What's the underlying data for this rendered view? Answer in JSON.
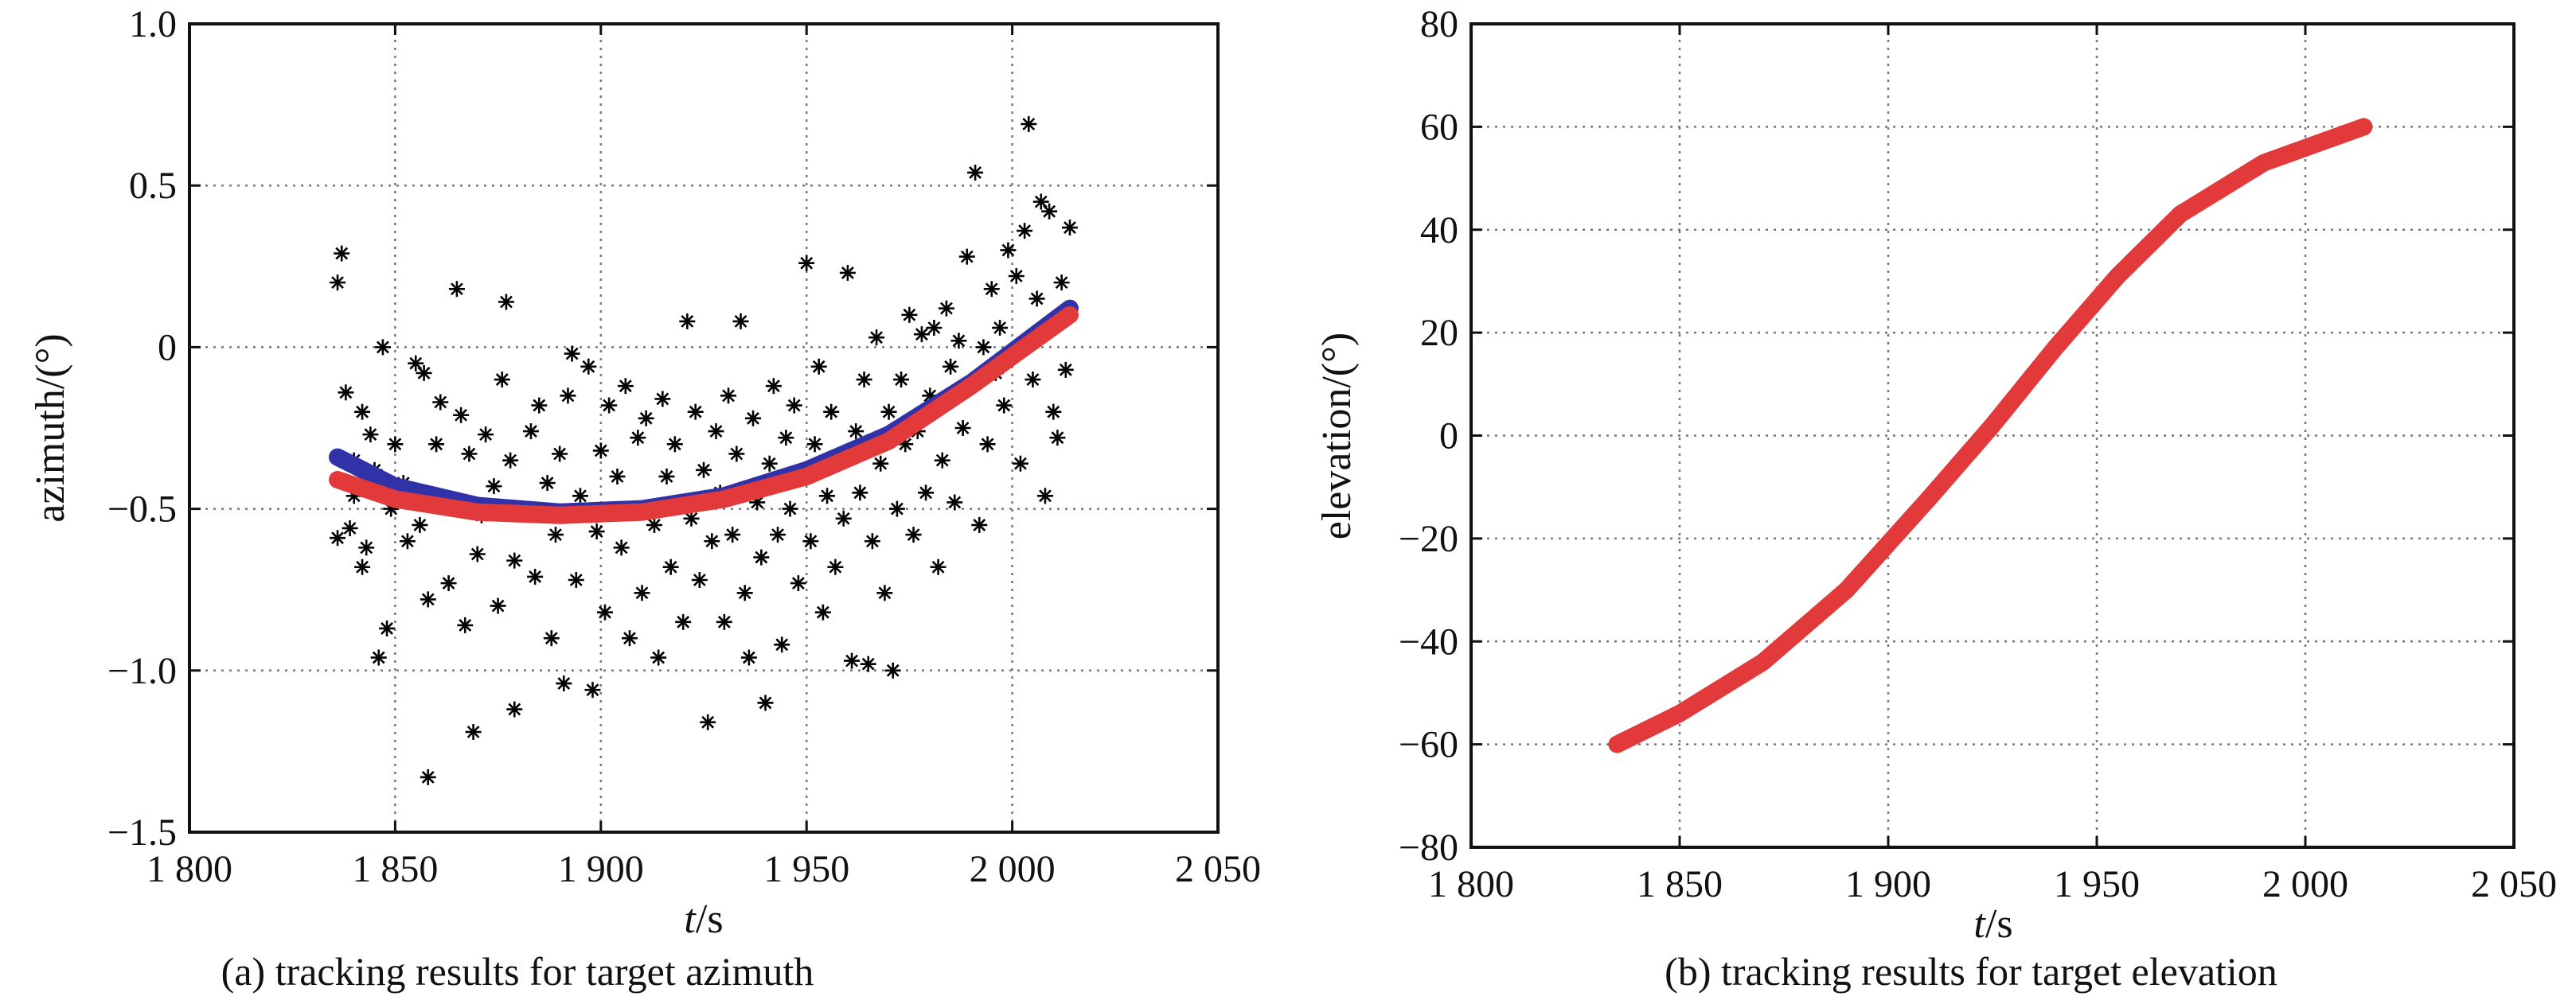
{
  "chart_data": [
    {
      "type": "scatter",
      "caption": "(a) tracking results for target azimuth",
      "xlabel_italic": "t",
      "xlabel_unit": "/s",
      "ylabel": "azimuth/(°)",
      "xlim": [
        1800,
        2050
      ],
      "ylim": [
        -1.5,
        1.0
      ],
      "xticks": [
        1800,
        1850,
        1900,
        1950,
        2000,
        2050
      ],
      "xtick_labels": [
        "1 800",
        "1 850",
        "1 900",
        "1 950",
        "2 000",
        "2 050"
      ],
      "yticks": [
        -1.5,
        -1.0,
        -0.5,
        0,
        0.5,
        1.0
      ],
      "ytick_labels": [
        "−1.5",
        "−1.0",
        "−0.5",
        "0",
        "0.5",
        "1.0"
      ],
      "grid": true,
      "series": [
        {
          "kind": "markers",
          "marker": "*",
          "color": "#000000",
          "points": [
            [
              1836,
              0.2
            ],
            [
              1837,
              0.29
            ],
            [
              1836,
              -0.59
            ],
            [
              1838,
              -0.14
            ],
            [
              1839,
              -0.56
            ],
            [
              1840,
              -0.35
            ],
            [
              1840,
              -0.46
            ],
            [
              1842,
              -0.2
            ],
            [
              1842,
              -0.68
            ],
            [
              1844,
              -0.27
            ],
            [
              1843,
              -0.62
            ],
            [
              1845,
              -0.38
            ],
            [
              1846,
              -0.96
            ],
            [
              1847,
              0.0
            ],
            [
              1848,
              -0.87
            ],
            [
              1849,
              -0.5
            ],
            [
              1850,
              -0.3
            ],
            [
              1852,
              -0.42
            ],
            [
              1853,
              -0.6
            ],
            [
              1855,
              -0.05
            ],
            [
              1856,
              -0.55
            ],
            [
              1857,
              -0.08
            ],
            [
              1858,
              -1.33
            ],
            [
              1858,
              -0.78
            ],
            [
              1860,
              -0.3
            ],
            [
              1861,
              -0.17
            ],
            [
              1863,
              -0.73
            ],
            [
              1865,
              0.18
            ],
            [
              1866,
              -0.21
            ],
            [
              1867,
              -0.86
            ],
            [
              1868,
              -0.33
            ],
            [
              1869,
              -1.19
            ],
            [
              1870,
              -0.64
            ],
            [
              1871,
              -0.52
            ],
            [
              1872,
              -0.27
            ],
            [
              1874,
              -0.43
            ],
            [
              1875,
              -0.8
            ],
            [
              1876,
              -0.1
            ],
            [
              1877,
              0.14
            ],
            [
              1878,
              -0.35
            ],
            [
              1879,
              -1.12
            ],
            [
              1879,
              -0.66
            ],
            [
              1881,
              -0.5
            ],
            [
              1883,
              -0.26
            ],
            [
              1884,
              -0.71
            ],
            [
              1885,
              -0.18
            ],
            [
              1887,
              -0.42
            ],
            [
              1888,
              -0.9
            ],
            [
              1889,
              -0.58
            ],
            [
              1890,
              -0.33
            ],
            [
              1891,
              -1.04
            ],
            [
              1892,
              -0.15
            ],
            [
              1893,
              -0.02
            ],
            [
              1894,
              -0.72
            ],
            [
              1895,
              -0.46
            ],
            [
              1897,
              -0.06
            ],
            [
              1898,
              -1.06
            ],
            [
              1899,
              -0.57
            ],
            [
              1900,
              -0.32
            ],
            [
              1901,
              -0.82
            ],
            [
              1902,
              -0.18
            ],
            [
              1904,
              -0.4
            ],
            [
              1905,
              -0.62
            ],
            [
              1906,
              -0.12
            ],
            [
              1907,
              -0.9
            ],
            [
              1908,
              -0.5
            ],
            [
              1909,
              -0.28
            ],
            [
              1910,
              -0.76
            ],
            [
              1911,
              -0.22
            ],
            [
              1913,
              -0.55
            ],
            [
              1914,
              -0.96
            ],
            [
              1915,
              -0.16
            ],
            [
              1916,
              -0.4
            ],
            [
              1917,
              -0.68
            ],
            [
              1918,
              -0.3
            ],
            [
              1920,
              -0.85
            ],
            [
              1921,
              0.08
            ],
            [
              1922,
              -0.53
            ],
            [
              1923,
              -0.2
            ],
            [
              1924,
              -0.72
            ],
            [
              1925,
              -0.38
            ],
            [
              1926,
              -1.16
            ],
            [
              1927,
              -0.6
            ],
            [
              1928,
              -0.26
            ],
            [
              1929,
              -0.45
            ],
            [
              1930,
              -0.85
            ],
            [
              1931,
              -0.15
            ],
            [
              1932,
              -0.58
            ],
            [
              1933,
              -0.33
            ],
            [
              1934,
              0.08
            ],
            [
              1935,
              -0.76
            ],
            [
              1936,
              -0.96
            ],
            [
              1937,
              -0.22
            ],
            [
              1938,
              -0.48
            ],
            [
              1939,
              -0.65
            ],
            [
              1940,
              -1.1
            ],
            [
              1941,
              -0.36
            ],
            [
              1942,
              -0.12
            ],
            [
              1943,
              -0.58
            ],
            [
              1944,
              -0.92
            ],
            [
              1945,
              -0.28
            ],
            [
              1946,
              -0.5
            ],
            [
              1947,
              -0.18
            ],
            [
              1948,
              -0.73
            ],
            [
              1949,
              -0.4
            ],
            [
              1950,
              0.26
            ],
            [
              1951,
              -0.6
            ],
            [
              1952,
              -0.3
            ],
            [
              1953,
              -0.06
            ],
            [
              1954,
              -0.82
            ],
            [
              1955,
              -0.46
            ],
            [
              1956,
              -0.2
            ],
            [
              1957,
              -0.68
            ],
            [
              1958,
              -0.36
            ],
            [
              1959,
              -0.53
            ],
            [
              1960,
              0.23
            ],
            [
              1961,
              -0.97
            ],
            [
              1962,
              -0.26
            ],
            [
              1963,
              -0.45
            ],
            [
              1964,
              -0.1
            ],
            [
              1965,
              -0.98
            ],
            [
              1966,
              -0.6
            ],
            [
              1967,
              0.03
            ],
            [
              1968,
              -0.36
            ],
            [
              1969,
              -0.76
            ],
            [
              1970,
              -0.2
            ],
            [
              1971,
              -1.0
            ],
            [
              1972,
              -0.5
            ],
            [
              1973,
              -0.1
            ],
            [
              1974,
              -0.3
            ],
            [
              1975,
              0.1
            ],
            [
              1976,
              -0.58
            ],
            [
              1977,
              -0.26
            ],
            [
              1978,
              0.04
            ],
            [
              1979,
              -0.45
            ],
            [
              1980,
              -0.15
            ],
            [
              1981,
              0.06
            ],
            [
              1982,
              -0.68
            ],
            [
              1983,
              -0.35
            ],
            [
              1984,
              0.12
            ],
            [
              1985,
              -0.06
            ],
            [
              1986,
              -0.48
            ],
            [
              1987,
              0.02
            ],
            [
              1988,
              -0.25
            ],
            [
              1989,
              0.28
            ],
            [
              1990,
              -0.12
            ],
            [
              1991,
              0.54
            ],
            [
              1992,
              -0.55
            ],
            [
              1993,
              0.0
            ],
            [
              1994,
              -0.3
            ],
            [
              1995,
              0.18
            ],
            [
              1996,
              -0.08
            ],
            [
              1997,
              0.06
            ],
            [
              1998,
              -0.18
            ],
            [
              1999,
              0.3
            ],
            [
              2000,
              -0.02
            ],
            [
              2001,
              0.22
            ],
            [
              2002,
              -0.36
            ],
            [
              2003,
              0.36
            ],
            [
              2004,
              0.69
            ],
            [
              2005,
              -0.1
            ],
            [
              2006,
              0.15
            ],
            [
              2007,
              0.45
            ],
            [
              2008,
              -0.46
            ],
            [
              2009,
              0.42
            ],
            [
              2010,
              -0.2
            ],
            [
              2011,
              -0.28
            ],
            [
              2012,
              0.2
            ],
            [
              2013,
              -0.07
            ],
            [
              2014,
              0.37
            ]
          ]
        },
        {
          "kind": "line",
          "color": "#3232a8",
          "x": [
            1836,
            1850,
            1870,
            1890,
            1910,
            1930,
            1950,
            1970,
            1990,
            2014
          ],
          "y": [
            -0.34,
            -0.43,
            -0.49,
            -0.51,
            -0.5,
            -0.46,
            -0.38,
            -0.27,
            -0.11,
            0.12
          ]
        },
        {
          "kind": "line",
          "color": "#e23a3a",
          "x": [
            1836,
            1850,
            1870,
            1890,
            1910,
            1930,
            1950,
            1970,
            1990,
            2014
          ],
          "y": [
            -0.41,
            -0.47,
            -0.51,
            -0.52,
            -0.51,
            -0.47,
            -0.4,
            -0.29,
            -0.12,
            0.1
          ]
        }
      ]
    },
    {
      "type": "line",
      "caption": "(b) tracking results for target elevation",
      "xlabel_italic": "t",
      "xlabel_unit": "/s",
      "ylabel": "elevation/(°)",
      "xlim": [
        1800,
        2050
      ],
      "ylim": [
        -80,
        80
      ],
      "xticks": [
        1800,
        1850,
        1900,
        1950,
        2000,
        2050
      ],
      "xtick_labels": [
        "1 800",
        "1 850",
        "1 900",
        "1 950",
        "2 000",
        "2 050"
      ],
      "yticks": [
        -80,
        -60,
        -40,
        -20,
        0,
        20,
        40,
        60,
        80
      ],
      "ytick_labels": [
        "−80",
        "−60",
        "−40",
        "−20",
        "0",
        "20",
        "40",
        "60",
        "80"
      ],
      "grid": true,
      "series": [
        {
          "kind": "line",
          "color": "#e23a3a",
          "x": [
            1835,
            1850,
            1870,
            1890,
            1910,
            1925,
            1940,
            1955,
            1970,
            1990,
            2014
          ],
          "y": [
            -60,
            -54,
            -44,
            -30,
            -12,
            2,
            17,
            31,
            43,
            53,
            60
          ]
        }
      ]
    }
  ]
}
